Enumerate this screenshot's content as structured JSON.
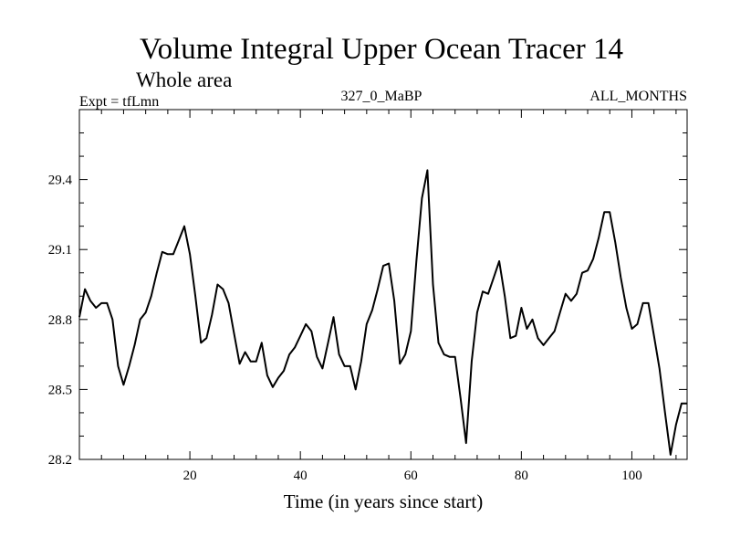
{
  "chart_data": {
    "type": "line",
    "title": "Volume Integral Upper Ocean Tracer 14",
    "subtitle": "Whole area",
    "annotations": {
      "left": "Expt = tfLmn",
      "center": "327_0_MaBP",
      "right": "ALL_MONTHS"
    },
    "xlabel": "Time (in years since start)",
    "ylabel": "",
    "xlim": [
      0,
      110
    ],
    "ylim": [
      28.2,
      29.7
    ],
    "xticks": [
      20,
      40,
      60,
      80,
      100
    ],
    "yticks": [
      28.2,
      28.5,
      28.8,
      29.1,
      29.4
    ],
    "ytick_labels": [
      "28.2",
      "28.5",
      "28.8",
      "29.1",
      "29.4"
    ],
    "series": [
      {
        "name": "Tracer 14",
        "x": [
          0,
          1,
          2,
          3,
          4,
          5,
          6,
          7,
          8,
          9,
          10,
          11,
          12,
          13,
          14,
          15,
          16,
          17,
          18,
          19,
          20,
          21,
          22,
          23,
          24,
          25,
          26,
          27,
          28,
          29,
          30,
          31,
          32,
          33,
          34,
          35,
          36,
          37,
          38,
          39,
          40,
          41,
          42,
          43,
          44,
          45,
          46,
          47,
          48,
          49,
          50,
          51,
          52,
          53,
          54,
          55,
          56,
          57,
          58,
          59,
          60,
          61,
          62,
          63,
          64,
          65,
          66,
          67,
          68,
          69,
          70,
          71,
          72,
          73,
          74,
          75,
          76,
          77,
          78,
          79,
          80,
          81,
          82,
          83,
          84,
          85,
          86,
          87,
          88,
          89,
          90,
          91,
          92,
          93,
          94,
          95,
          96,
          97,
          98,
          99,
          100,
          101,
          102,
          103,
          104,
          105,
          106,
          107,
          108,
          109,
          110
        ],
        "y": [
          28.81,
          28.93,
          28.88,
          28.85,
          28.87,
          28.87,
          28.8,
          28.6,
          28.52,
          28.6,
          28.69,
          28.8,
          28.83,
          28.9,
          29.0,
          29.09,
          29.08,
          29.08,
          29.14,
          29.2,
          29.08,
          28.9,
          28.7,
          28.72,
          28.82,
          28.95,
          28.93,
          28.87,
          28.74,
          28.61,
          28.66,
          28.62,
          28.62,
          28.7,
          28.56,
          28.51,
          28.55,
          28.58,
          28.65,
          28.68,
          28.73,
          28.78,
          28.75,
          28.64,
          28.59,
          28.7,
          28.81,
          28.65,
          28.6,
          28.6,
          28.5,
          28.62,
          28.78,
          28.84,
          28.93,
          29.03,
          29.04,
          28.88,
          28.61,
          28.65,
          28.75,
          29.05,
          29.32,
          29.44,
          28.95,
          28.7,
          28.65,
          28.64,
          28.64,
          28.46,
          28.27,
          28.62,
          28.83,
          28.92,
          28.91,
          28.98,
          29.05,
          28.9,
          28.72,
          28.73,
          28.85,
          28.76,
          28.8,
          28.72,
          28.69,
          28.72,
          28.75,
          28.83,
          28.91,
          28.88,
          28.91,
          29.0,
          29.01,
          29.06,
          29.15,
          29.26,
          29.26,
          29.13,
          28.98,
          28.85,
          28.76,
          28.78,
          28.87,
          28.87,
          28.73,
          28.59,
          28.4,
          28.22,
          28.35,
          28.44,
          28.44
        ]
      }
    ]
  }
}
